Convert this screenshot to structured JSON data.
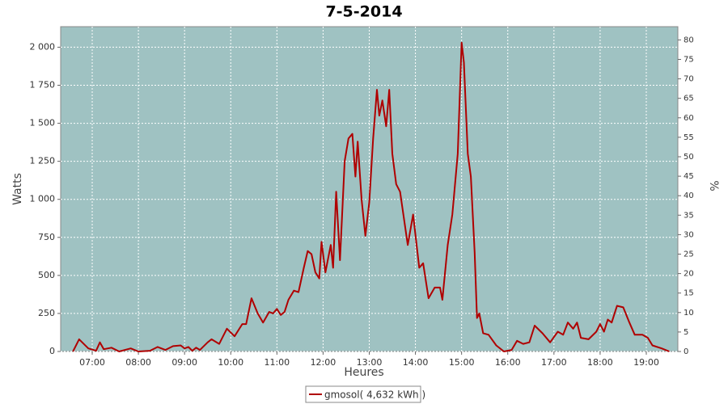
{
  "chart_data": {
    "type": "line",
    "title": "7-5-2014",
    "x_label": "Heures",
    "y_label": "Watts",
    "y2_label": "%",
    "xlim": [
      "06:19",
      "19:41"
    ],
    "xticks": [
      "07:00",
      "08:00",
      "09:00",
      "10:00",
      "11:00",
      "12:00",
      "13:00",
      "14:00",
      "15:00",
      "16:00",
      "17:00",
      "18:00",
      "19:00"
    ],
    "ylim": [
      0,
      2135
    ],
    "yticks": [
      0,
      250,
      500,
      750,
      {
        "value": 1000,
        "label": "1 000"
      },
      {
        "value": 1250,
        "label": "1 250"
      },
      {
        "value": 1500,
        "label": "1 500"
      },
      {
        "value": 1750,
        "label": "1 750"
      },
      {
        "value": 2000,
        "label": "2 000"
      }
    ],
    "y2lim": [
      0,
      83.4
    ],
    "y2ticks": [
      0,
      5,
      10,
      15,
      20,
      25,
      30,
      35,
      40,
      45,
      50,
      55,
      60,
      65,
      70,
      75,
      80
    ],
    "grid": true,
    "legend": "bottom",
    "x": [
      "06:35",
      "06:43",
      "06:55",
      "07:05",
      "07:10",
      "07:15",
      "07:25",
      "07:35",
      "07:50",
      "08:00",
      "08:15",
      "08:25",
      "08:35",
      "08:45",
      "08:55",
      "09:00",
      "09:05",
      "09:10",
      "09:15",
      "09:20",
      "09:30",
      "09:35",
      "09:45",
      "09:55",
      "10:05",
      "10:15",
      "10:20",
      "10:27",
      "10:35",
      "10:42",
      "10:50",
      "10:55",
      "11:00",
      "11:05",
      "11:10",
      "11:15",
      "11:22",
      "11:28",
      "11:35",
      "11:40",
      "11:45",
      "11:50",
      "11:55",
      "11:58",
      "12:03",
      "12:10",
      "12:13",
      "12:17",
      "12:22",
      "12:28",
      "12:33",
      "12:38",
      "12:42",
      "12:45",
      "12:50",
      "12:55",
      "13:00",
      "13:05",
      "13:10",
      "13:13",
      "13:17",
      "13:22",
      "13:26",
      "13:30",
      "13:35",
      "13:40",
      "13:50",
      "13:57",
      "14:05",
      "14:10",
      "14:17",
      "14:25",
      "14:32",
      "14:35",
      "14:42",
      "14:48",
      "14:55",
      "15:00",
      "15:03",
      "15:08",
      "15:12",
      "15:17",
      "15:20",
      "15:23",
      "15:28",
      "15:35",
      "15:45",
      "15:55",
      "16:05",
      "16:12",
      "16:20",
      "16:28",
      "16:35",
      "16:45",
      "16:55",
      "17:05",
      "17:12",
      "17:18",
      "17:25",
      "17:30",
      "17:35",
      "17:45",
      "17:55",
      "18:00",
      "18:05",
      "18:10",
      "18:15",
      "18:22",
      "18:30",
      "18:38",
      "18:45",
      "18:55",
      "19:02",
      "19:08",
      "19:20",
      "19:30"
    ],
    "series": [
      {
        "name": "gmosol( 4,632 kWh )",
        "color": "#b00000",
        "values": [
          0,
          80,
          20,
          5,
          60,
          15,
          25,
          0,
          20,
          0,
          5,
          30,
          10,
          35,
          40,
          20,
          30,
          5,
          25,
          10,
          60,
          80,
          50,
          150,
          100,
          180,
          180,
          350,
          250,
          190,
          260,
          250,
          280,
          240,
          260,
          340,
          400,
          390,
          550,
          660,
          640,
          520,
          480,
          720,
          520,
          700,
          550,
          1050,
          600,
          1250,
          1400,
          1430,
          1150,
          1380,
          1000,
          760,
          980,
          1400,
          1720,
          1550,
          1650,
          1480,
          1720,
          1300,
          1100,
          1050,
          700,
          900,
          550,
          580,
          350,
          420,
          420,
          340,
          700,
          900,
          1300,
          2030,
          1900,
          1300,
          1150,
          650,
          220,
          250,
          120,
          110,
          40,
          0,
          10,
          70,
          50,
          60,
          170,
          120,
          60,
          130,
          110,
          190,
          150,
          190,
          90,
          80,
          130,
          180,
          130,
          210,
          190,
          300,
          290,
          190,
          110,
          110,
          90,
          40,
          20,
          0
        ]
      }
    ]
  }
}
